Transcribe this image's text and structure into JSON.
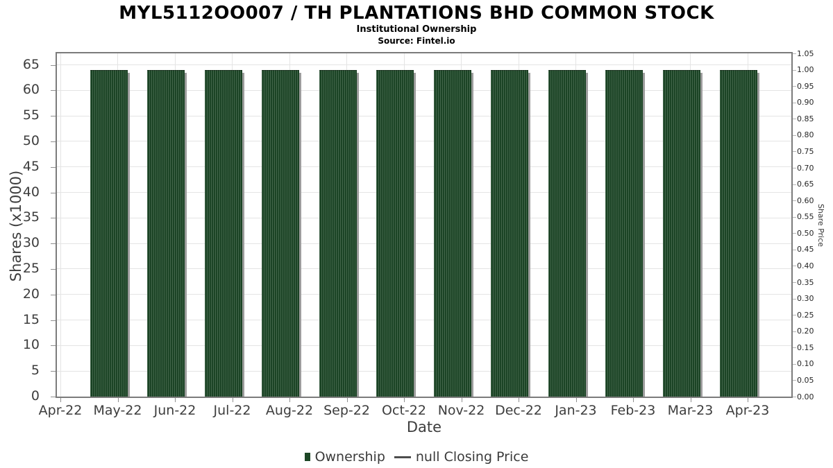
{
  "header": {
    "title": "MYL5112OO007 / TH PLANTATIONS BHD COMMON STOCK",
    "subtitle": "Institutional Ownership",
    "source": "Source: Fintel.io"
  },
  "chart_data": {
    "type": "bar",
    "title": "MYL5112OO007 / TH PLANTATIONS BHD COMMON STOCK",
    "subtitle": "Institutional Ownership",
    "source": "Source: Fintel.io",
    "xlabel": "Date",
    "ylabel_left": "Shares (x1000)",
    "ylabel_right": "Share Price",
    "categories": [
      "May-22",
      "Jun-22",
      "Jul-22",
      "Aug-22",
      "Sep-22",
      "Oct-22",
      "Nov-22",
      "Dec-22",
      "Jan-23",
      "Feb-23",
      "Mar-23",
      "Apr-23"
    ],
    "series": [
      {
        "name": "Ownership",
        "type": "bar",
        "color": "#1d4726",
        "values": [
          64,
          64,
          64,
          64,
          64,
          64,
          64,
          64,
          64,
          64,
          64,
          64
        ]
      },
      {
        "name": "null Closing Price",
        "type": "line",
        "color": "#4d4d4d",
        "values": null
      }
    ],
    "x_tick_labels": [
      "Apr-22",
      "May-22",
      "Jun-22",
      "Jul-22",
      "Aug-22",
      "Sep-22",
      "Oct-22",
      "Nov-22",
      "Dec-22",
      "Jan-23",
      "Feb-23",
      "Mar-23",
      "Apr-23"
    ],
    "left_axis": {
      "min": 0,
      "max": 67.25,
      "tick_step": 5,
      "tick_max": 65
    },
    "right_axis": {
      "min": 0,
      "max": 1.05,
      "tick_step": 0.05,
      "decimals": 2
    },
    "grid": true,
    "legend_position": "bottom",
    "colors": {
      "bar": "#1d4726",
      "bar_shadow": "#9c9c9c",
      "gridline": "#e4e4e4",
      "plot_border": "#7b7b7b",
      "tick_label": "#3d3d3d"
    }
  }
}
